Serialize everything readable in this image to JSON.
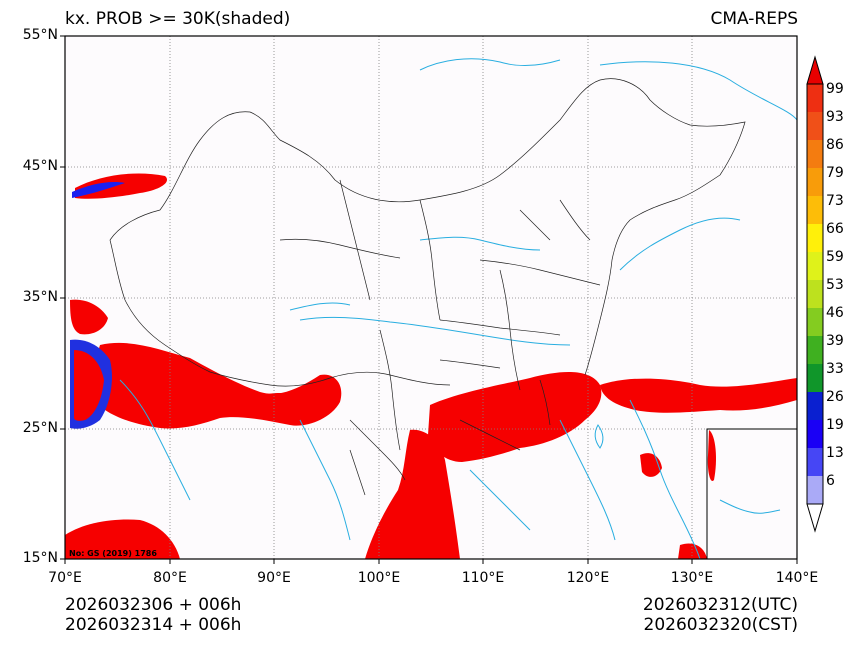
{
  "header": {
    "title_left": "kx. PROB >= 30K(shaded)",
    "title_right": "CMA-REPS"
  },
  "map": {
    "lat_ticks": [
      "55°N",
      "45°N",
      "35°N",
      "25°N",
      "15°N"
    ],
    "lon_ticks": [
      "70°E",
      "80°E",
      "90°E",
      "100°E",
      "110°E",
      "120°E",
      "130°E",
      "140°E"
    ],
    "stamp": "No: GS (2019) 1786",
    "colors": {
      "frame": "#000000",
      "grid": "#808080",
      "rivers": "#29aee0",
      "borders": "#222222",
      "background": "#fdfbfd",
      "shade_main": "#f60000"
    }
  },
  "colorbar": {
    "labels": [
      "99",
      "93",
      "86",
      "79",
      "73",
      "66",
      "59",
      "53",
      "46",
      "39",
      "33",
      "26",
      "19",
      "13",
      "6"
    ],
    "colors": [
      "#ee2f12",
      "#f05018",
      "#f47c10",
      "#f89c0a",
      "#fdbd08",
      "#fff00a",
      "#dff21a",
      "#bde11e",
      "#84cc20",
      "#3fb020",
      "#10962a",
      "#0a20d0",
      "#1a00f5",
      "#4646f5",
      "#aaaaf7"
    ],
    "top_arrow_color": "#e80000",
    "bottom_arrow_color": "#ffffff"
  },
  "footer": {
    "left_line1": "2026032306  +  006h",
    "left_line2": "2026032314  +  006h",
    "right_line1": "2026032312(UTC)",
    "right_line2": "2026032320(CST)"
  }
}
